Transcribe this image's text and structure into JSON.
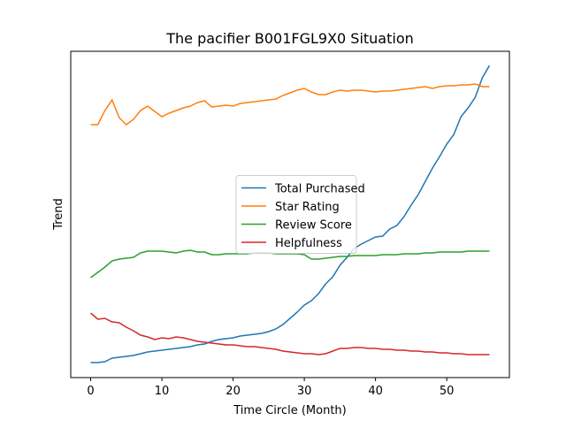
{
  "chart_data": {
    "type": "line",
    "title": "The pacifier B001FGL9X0 Situation",
    "xlabel": "Time Circle (Month)",
    "ylabel": "Trend",
    "x": [
      0,
      1,
      2,
      3,
      4,
      5,
      6,
      7,
      8,
      9,
      10,
      11,
      12,
      13,
      14,
      15,
      16,
      17,
      18,
      19,
      20,
      21,
      22,
      23,
      24,
      25,
      26,
      27,
      28,
      29,
      30,
      31,
      32,
      33,
      34,
      35,
      36,
      37,
      38,
      39,
      40,
      41,
      42,
      43,
      44,
      45,
      46,
      47,
      48,
      49,
      50,
      51,
      52,
      53,
      54,
      55,
      56
    ],
    "xlim": [
      -2.8,
      58.8
    ],
    "xticks": [
      0,
      10,
      20,
      30,
      40,
      50
    ],
    "ylim": [
      0,
      369
    ],
    "legend": "center",
    "series": [
      {
        "name": "Total Purchased",
        "color": "#1f77b4",
        "values": [
          17,
          17,
          18,
          22,
          23,
          24,
          25,
          27,
          29,
          30,
          31,
          32,
          33,
          34,
          35,
          37,
          38,
          41,
          43,
          44,
          45,
          47,
          48,
          49,
          50,
          52,
          55,
          60,
          67,
          74,
          82,
          87,
          95,
          106,
          114,
          127,
          136,
          146,
          151,
          155,
          159,
          160,
          168,
          172,
          182,
          195,
          207,
          222,
          237,
          250,
          264,
          275,
          295,
          305,
          317,
          339,
          353
        ]
      },
      {
        "name": "Star Rating",
        "color": "#ff7f0e",
        "values": [
          286,
          286,
          302,
          314,
          294,
          286,
          292,
          302,
          307,
          301,
          295,
          299,
          302,
          305,
          307,
          311,
          313,
          306,
          307,
          308,
          307,
          310,
          311,
          312,
          313,
          314,
          315,
          319,
          322,
          325,
          327,
          323,
          320,
          320,
          323,
          325,
          324,
          325,
          325,
          324,
          323,
          324,
          324,
          325,
          326,
          327,
          328,
          329,
          327,
          329,
          330,
          330,
          331,
          331,
          332,
          329,
          329
        ]
      },
      {
        "name": "Review Score",
        "color": "#2ca02c",
        "values": [
          113,
          119,
          125,
          132,
          134,
          135,
          136,
          141,
          143,
          143,
          143,
          142,
          141,
          143,
          144,
          142,
          142,
          139,
          139,
          140,
          140,
          140,
          140,
          141,
          141,
          141,
          140,
          140,
          140,
          140,
          139,
          134,
          134,
          135,
          136,
          137,
          137,
          138,
          138,
          138,
          138,
          139,
          139,
          139,
          140,
          140,
          140,
          141,
          141,
          142,
          142,
          142,
          142,
          143,
          143,
          143,
          143
        ]
      },
      {
        "name": "Helpfulness",
        "color": "#d62728",
        "values": [
          73,
          66,
          67,
          63,
          62,
          57,
          53,
          48,
          46,
          43,
          45,
          44,
          46,
          45,
          43,
          41,
          40,
          39,
          38,
          37,
          37,
          36,
          35,
          35,
          34,
          33,
          32,
          30,
          29,
          28,
          27,
          27,
          26,
          27,
          30,
          33,
          33,
          34,
          34,
          33,
          33,
          32,
          32,
          31,
          31,
          30,
          30,
          29,
          29,
          28,
          28,
          27,
          27,
          26,
          26,
          26,
          26
        ]
      }
    ]
  }
}
